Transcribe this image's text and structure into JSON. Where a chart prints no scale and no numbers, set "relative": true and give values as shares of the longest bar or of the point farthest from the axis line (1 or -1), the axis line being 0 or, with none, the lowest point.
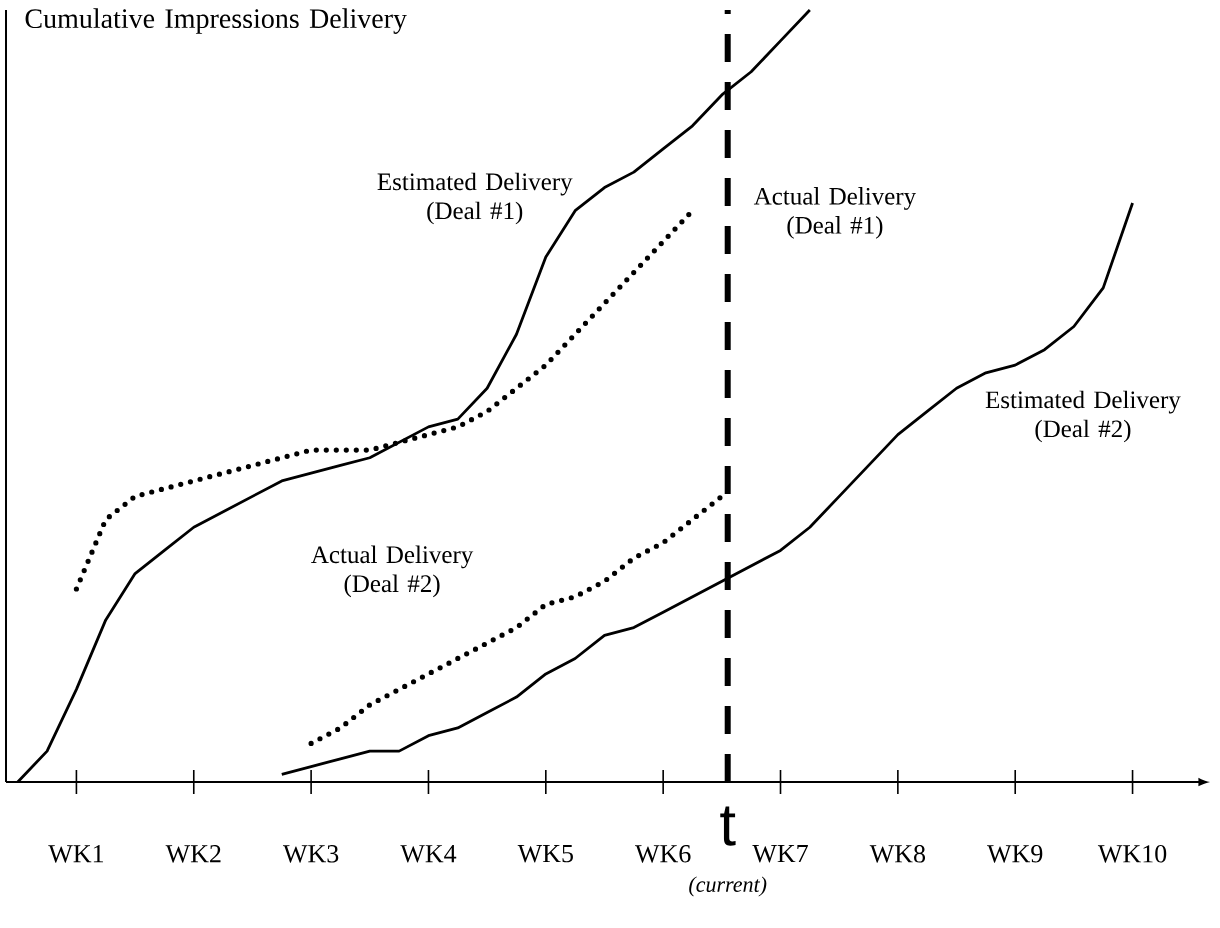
{
  "chart_data": {
    "type": "line",
    "ylabel": "Cumulative Impressions Delivery",
    "relative": true,
    "categories": [
      null,
      null,
      "WK1",
      null,
      null,
      null,
      "WK2",
      null,
      null,
      null,
      "WK3",
      null,
      null,
      null,
      "WK4",
      null,
      null,
      null,
      "WK5",
      null,
      null,
      null,
      "WK6",
      null,
      null,
      null,
      "WK7",
      null,
      null,
      null,
      "WK8",
      null,
      null,
      null,
      "WK9",
      null,
      null,
      null,
      "WK10",
      null,
      null
    ],
    "tick_labels": "x",
    "series": [
      {
        "name": "Estimated Delivery (Deal #1)",
        "color": "#000000",
        "line_style": "solid",
        "values": [
          0.0,
          0.04,
          0.12,
          0.21,
          0.27,
          0.3,
          0.33,
          0.35,
          0.37,
          0.39,
          0.4,
          0.41,
          0.42,
          0.44,
          0.46,
          0.47,
          0.51,
          0.58,
          0.68,
          0.74,
          0.77,
          0.79,
          0.82,
          0.85,
          0.89,
          0.92,
          0.96,
          1.0,
          null,
          null,
          null,
          null,
          null,
          null,
          null,
          null,
          null,
          null,
          null,
          null,
          null
        ]
      },
      {
        "name": "Actual Delivery (Deal #1)",
        "color": "#000000",
        "line_style": "dotted",
        "values": [
          null,
          null,
          0.25,
          0.34,
          0.37,
          0.38,
          0.39,
          0.4,
          0.41,
          0.42,
          0.43,
          0.43,
          0.43,
          0.44,
          0.45,
          0.46,
          0.48,
          0.51,
          0.54,
          0.58,
          0.62,
          0.66,
          0.7,
          0.74,
          null,
          null,
          null,
          null,
          null,
          null,
          null,
          null,
          null,
          null,
          null,
          null,
          null,
          null,
          null,
          null,
          null
        ]
      },
      {
        "name": "Actual Delivery (Deal #2)",
        "color": "#000000",
        "line_style": "dotted",
        "values": [
          null,
          null,
          null,
          null,
          null,
          null,
          null,
          null,
          null,
          null,
          0.05,
          0.07,
          0.1,
          0.12,
          0.14,
          0.16,
          0.18,
          0.2,
          0.23,
          0.24,
          0.26,
          0.29,
          0.31,
          0.34,
          0.37,
          null,
          null,
          null,
          null,
          null,
          null,
          null,
          null,
          null,
          null,
          null,
          null,
          null,
          null,
          null,
          null
        ]
      },
      {
        "name": "Estimated Delivery (Deal #2)",
        "color": "#000000",
        "line_style": "solid",
        "values": [
          null,
          null,
          null,
          null,
          null,
          null,
          null,
          null,
          null,
          0.01,
          0.02,
          0.03,
          0.04,
          0.04,
          0.06,
          0.07,
          0.09,
          0.11,
          0.14,
          0.16,
          0.19,
          0.2,
          0.22,
          0.24,
          0.26,
          0.28,
          0.3,
          0.33,
          0.37,
          0.41,
          0.45,
          0.48,
          0.51,
          0.53,
          0.54,
          0.56,
          0.59,
          0.64,
          0.75,
          null,
          null
        ]
      }
    ],
    "annotations": [
      "t",
      "(current)"
    ]
  }
}
